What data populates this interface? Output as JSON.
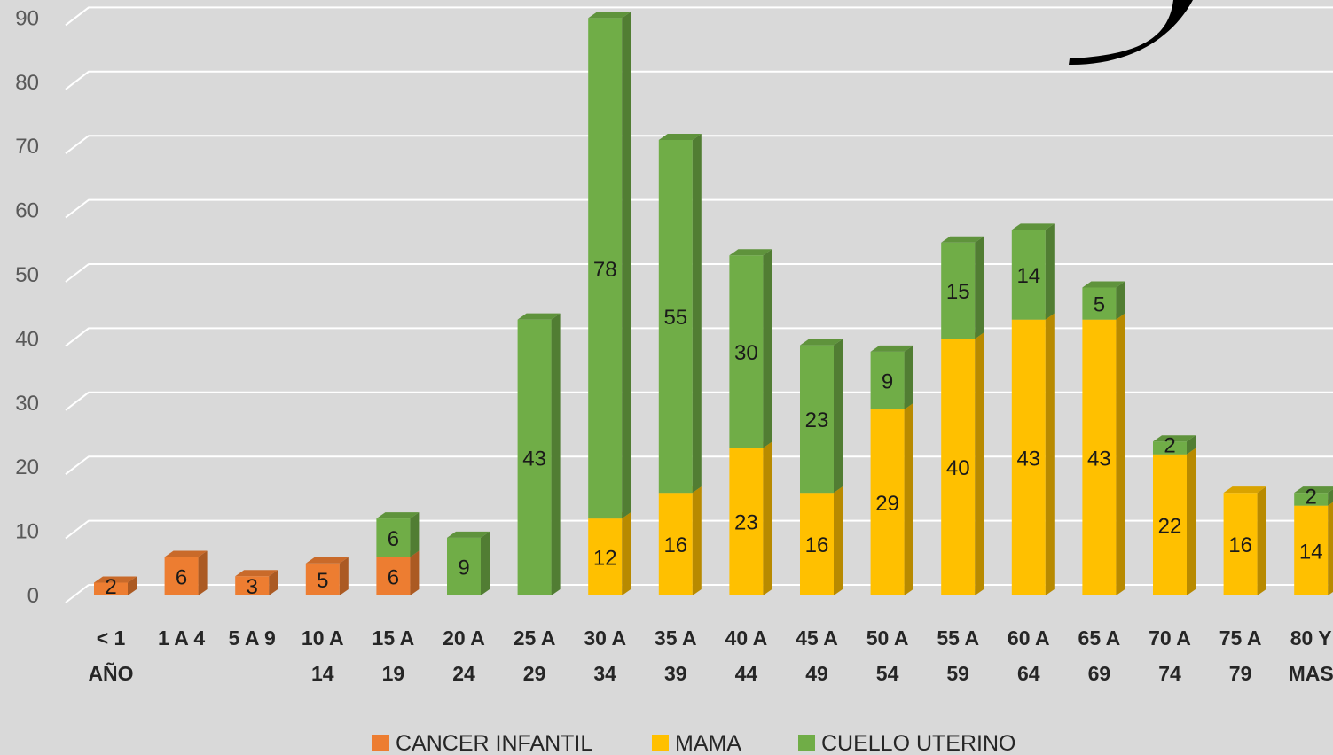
{
  "chart_data": {
    "type": "bar",
    "stacked": true,
    "three_d": true,
    "title": "",
    "xlabel": "",
    "ylabel": "",
    "ylim": [
      0,
      90
    ],
    "yticks": [
      "0",
      "10",
      "20",
      "30",
      "40",
      "50",
      "60",
      "70",
      "80",
      "90"
    ],
    "grid": true,
    "legend_position": "bottom",
    "categories": [
      [
        "< 1",
        "AÑO"
      ],
      [
        "1 A 4",
        ""
      ],
      [
        "5 A 9",
        ""
      ],
      [
        "10 A",
        "14"
      ],
      [
        "15 A",
        "19"
      ],
      [
        "20 A",
        "24"
      ],
      [
        "25 A",
        "29"
      ],
      [
        "30 A",
        "34"
      ],
      [
        "35 A",
        "39"
      ],
      [
        "40 A",
        "44"
      ],
      [
        "45 A",
        "49"
      ],
      [
        "50 A",
        "54"
      ],
      [
        "55 A",
        "59"
      ],
      [
        "60 A",
        "64"
      ],
      [
        "65 A",
        "69"
      ],
      [
        "70 A",
        "74"
      ],
      [
        "75 A",
        "79"
      ],
      [
        "80 Y",
        "MAS"
      ]
    ],
    "series": [
      {
        "name": "CANCER INFANTIL",
        "color": "#ed7d31",
        "values": [
          2,
          6,
          3,
          5,
          6,
          0,
          0,
          0,
          0,
          0,
          0,
          0,
          0,
          0,
          0,
          0,
          0,
          0
        ]
      },
      {
        "name": "MAMA",
        "color": "#ffc000",
        "values": [
          0,
          0,
          0,
          0,
          0,
          0,
          0,
          12,
          16,
          23,
          16,
          29,
          40,
          43,
          43,
          22,
          16,
          14
        ]
      },
      {
        "name": "CUELLO UTERINO",
        "color": "#70ad47",
        "values": [
          0,
          0,
          0,
          0,
          6,
          9,
          43,
          78,
          55,
          30,
          23,
          9,
          15,
          14,
          5,
          2,
          0,
          2
        ]
      }
    ]
  }
}
